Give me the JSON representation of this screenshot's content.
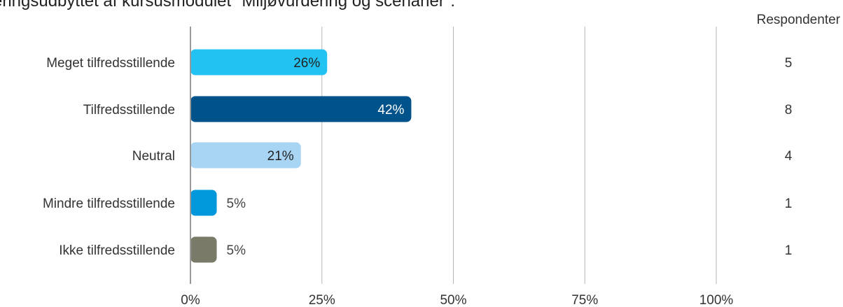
{
  "header": {
    "title": "æringsudbyttet af kursusmodulet \"Miljøvurdering og scenarier\":",
    "respondents_label": "Respondenter"
  },
  "chart_data": {
    "type": "bar",
    "orientation": "horizontal",
    "categories": [
      "Meget tilfredsstillende",
      "Tilfredsstillende",
      "Neutral",
      "Mindre tilfredsstillende",
      "Ikke tilfredsstillende"
    ],
    "values": [
      26,
      42,
      21,
      5,
      5
    ],
    "value_labels": [
      "26%",
      "42%",
      "21%",
      "5%",
      "5%"
    ],
    "respondents": [
      "5",
      "8",
      "4",
      "1",
      "1"
    ],
    "colors": [
      "#22c3f2",
      "#00538a",
      "#a9d5f5",
      "#0098da",
      "#7a7a69"
    ],
    "label_colors": [
      "#222222",
      "#ffffff",
      "#222222",
      "#444444",
      "#444444"
    ],
    "xlim": [
      0,
      100
    ],
    "x_ticks": [
      0,
      25,
      50,
      75,
      100
    ],
    "x_tick_labels": [
      "0%",
      "25%",
      "50%",
      "75%",
      "100%"
    ],
    "grid": true
  }
}
